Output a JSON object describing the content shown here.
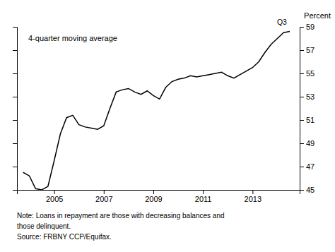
{
  "chart_data": {
    "type": "line",
    "y_label": "Percent",
    "annotation": "4-quarter moving average",
    "end_label": "Q3",
    "notes": [
      "Note: Loans in repayment are those with decreasing balances and",
      "those delinquent.",
      "Source: FRBNY CCP/Equifax."
    ],
    "color": "#000000",
    "xlim": [
      2003.5,
      2014.9
    ],
    "xticks": [
      2005,
      2007,
      2009,
      2011,
      2013
    ],
    "ylim": [
      45,
      59
    ],
    "yticks": [
      45,
      47,
      49,
      51,
      53,
      55,
      57,
      59
    ],
    "tick_labels": true,
    "x": [
      2003.75,
      2004.0,
      2004.25,
      2004.5,
      2004.75,
      2005.0,
      2005.25,
      2005.5,
      2005.75,
      2006.0,
      2006.25,
      2006.5,
      2006.75,
      2007.0,
      2007.25,
      2007.5,
      2007.75,
      2008.0,
      2008.25,
      2008.5,
      2008.75,
      2009.0,
      2009.25,
      2009.5,
      2009.75,
      2010.0,
      2010.25,
      2010.5,
      2010.75,
      2011.0,
      2011.25,
      2011.5,
      2011.75,
      2012.0,
      2012.25,
      2012.5,
      2012.75,
      2013.0,
      2013.25,
      2013.5,
      2013.75,
      2014.0,
      2014.25,
      2014.5
    ],
    "values": [
      46.5,
      46.2,
      45.1,
      45.0,
      45.3,
      47.5,
      49.8,
      51.2,
      51.4,
      50.6,
      50.4,
      50.3,
      50.2,
      50.5,
      52.0,
      53.4,
      53.6,
      53.7,
      53.4,
      53.2,
      53.5,
      53.1,
      52.8,
      53.8,
      54.3,
      54.5,
      54.6,
      54.8,
      54.7,
      54.8,
      54.9,
      55.0,
      55.1,
      54.8,
      54.6,
      54.9,
      55.2,
      55.5,
      56.0,
      56.8,
      57.5,
      58.0,
      58.5,
      58.6
    ]
  }
}
